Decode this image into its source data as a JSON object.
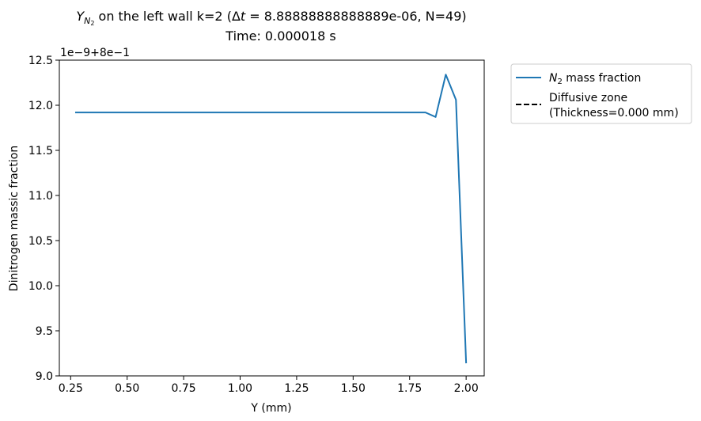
{
  "chart_data": {
    "type": "line",
    "title_sym": "Y",
    "title_sub": "N",
    "title_sub2": "2",
    "title_rest": " on the left wall k=2 (",
    "title_delta": "Δ",
    "title_t": "t",
    "title_eq": " = 8.88888888888889e-06, N=49)",
    "subtitle": "Time: 0.000018 s",
    "xlabel": "Y (mm)",
    "ylabel": "Dinitrogen massic fraction",
    "offset_label": "1e−9+8e−1",
    "xlim": [
      0.2,
      2.08
    ],
    "ylim": [
      9.0,
      12.5
    ],
    "x_ticks": [
      0.25,
      0.5,
      0.75,
      1.0,
      1.25,
      1.5,
      1.75,
      2.0
    ],
    "x_tick_labels": [
      "0.25",
      "0.50",
      "0.75",
      "1.00",
      "1.25",
      "1.50",
      "1.75",
      "2.00"
    ],
    "y_ticks": [
      9.0,
      9.5,
      10.0,
      10.5,
      11.0,
      11.5,
      12.0,
      12.5
    ],
    "y_tick_labels": [
      "9.0",
      "9.5",
      "10.0",
      "10.5",
      "11.0",
      "11.5",
      "12.0",
      "12.5"
    ],
    "legend_position": "outside-upper-right",
    "series": [
      {
        "name_sym": "N",
        "name_sub": "2",
        "name_rest": " mass fraction",
        "color": "#1f77b4",
        "style": "solid",
        "x": [
          0.27,
          1.82,
          1.865,
          1.91,
          1.955,
          2.0
        ],
        "y": [
          11.92,
          11.92,
          11.87,
          12.34,
          12.06,
          9.14
        ]
      },
      {
        "name_line1": "Diffusive zone",
        "name_line2": "(Thickness=0.000 mm)",
        "color": "#000000",
        "style": "dashed",
        "x": [],
        "y": []
      }
    ]
  }
}
